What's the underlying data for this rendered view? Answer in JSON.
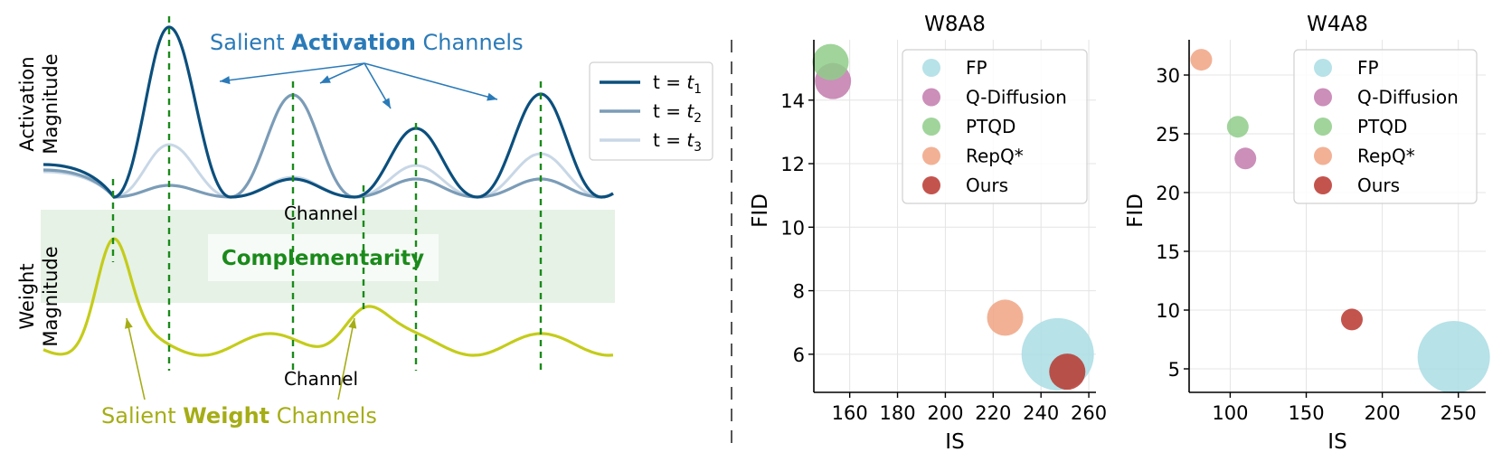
{
  "left_panel": {
    "activation_annotation": {
      "pre": "Salient ",
      "bold": "Activation",
      "post": " Channels"
    },
    "weight_annotation": {
      "pre": "Salient ",
      "bold": "Weight",
      "post": " Channels"
    },
    "complementarity": "Complementarity",
    "activation_ylabel_1": "Activation",
    "activation_ylabel_2": "Magnitude",
    "weight_ylabel_1": "Weight",
    "weight_ylabel_2": "Magnitude",
    "channel_label_top": "Channel",
    "channel_label_bottom": "Channel",
    "legend": [
      {
        "prefix": "t = ",
        "var": "t",
        "sub": "1",
        "color": "#0b4f7d"
      },
      {
        "prefix": "t = ",
        "var": "t",
        "sub": "2",
        "color": "#7b9cb7"
      },
      {
        "prefix": "t = ",
        "var": "t",
        "sub": "3",
        "color": "#c8d7e6"
      }
    ],
    "colors": {
      "activation_text": "#2a7ab8",
      "weight_text": "#a5ad16",
      "weight_curve": "#c4cc1a",
      "complementarity_text": "#1a8a1a",
      "band_fill": "#e6f2e6",
      "dashed_line": "#1a8a1a"
    }
  },
  "chart_data": [
    {
      "type": "scatter",
      "title": "W8A8",
      "xlabel": "IS",
      "ylabel": "FID",
      "xlim": [
        145,
        263
      ],
      "ylim": [
        4.8,
        15.9
      ],
      "xticks": [
        160,
        180,
        200,
        220,
        240,
        260
      ],
      "yticks": [
        6,
        8,
        10,
        12,
        14
      ],
      "grid": true,
      "legend_position": "top-right",
      "series": [
        {
          "name": "FP",
          "color": "#a9dde4",
          "points": [
            {
              "x": 247,
              "y": 6.0,
              "size": "large"
            }
          ]
        },
        {
          "name": "Q-Diffusion",
          "color": "#c27bad",
          "points": [
            {
              "x": 153,
              "y": 14.6,
              "size": "medium"
            }
          ]
        },
        {
          "name": "PTQD",
          "color": "#8fcc8a",
          "points": [
            {
              "x": 152,
              "y": 15.2,
              "size": "medium"
            }
          ]
        },
        {
          "name": "RepQ*",
          "color": "#f0a383",
          "points": [
            {
              "x": 225,
              "y": 7.15,
              "size": "medium"
            }
          ]
        },
        {
          "name": "Ours",
          "color": "#b8362e",
          "points": [
            {
              "x": 251,
              "y": 5.45,
              "size": "medium"
            }
          ]
        }
      ]
    },
    {
      "type": "scatter",
      "title": "W4A8",
      "xlabel": "IS",
      "ylabel": "FID",
      "xlim": [
        73,
        268
      ],
      "ylim": [
        3.0,
        33.0
      ],
      "xticks": [
        100,
        150,
        200,
        250
      ],
      "yticks": [
        5,
        10,
        15,
        20,
        25,
        30
      ],
      "grid": true,
      "legend_position": "top-right",
      "series": [
        {
          "name": "FP",
          "color": "#a9dde4",
          "points": [
            {
              "x": 247,
              "y": 6.0,
              "size": "large"
            }
          ]
        },
        {
          "name": "Q-Diffusion",
          "color": "#c27bad",
          "points": [
            {
              "x": 110,
              "y": 22.9,
              "size": "small"
            }
          ]
        },
        {
          "name": "PTQD",
          "color": "#8fcc8a",
          "points": [
            {
              "x": 105,
              "y": 25.6,
              "size": "small"
            }
          ]
        },
        {
          "name": "RepQ*",
          "color": "#f0a383",
          "points": [
            {
              "x": 81,
              "y": 31.3,
              "size": "small"
            }
          ]
        },
        {
          "name": "Ours",
          "color": "#b8362e",
          "points": [
            {
              "x": 180,
              "y": 9.2,
              "size": "small"
            }
          ]
        }
      ]
    }
  ]
}
